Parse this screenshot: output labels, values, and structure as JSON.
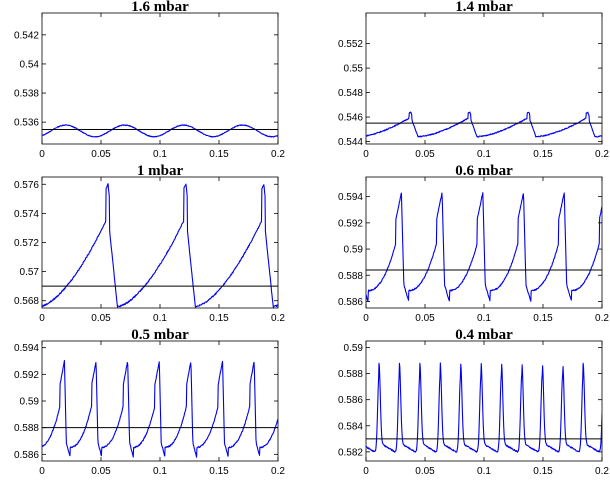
{
  "chart_data": [
    {
      "type": "line",
      "title": "1.6 mbar",
      "xlim": [
        0,
        0.2
      ],
      "ylim": [
        0.5345,
        0.5435
      ],
      "xticks": [
        0,
        0.05,
        0.1,
        0.15,
        0.2
      ],
      "xticklabels": [
        "0",
        "0.05",
        "0.1",
        "0.15",
        "0.2"
      ],
      "yticks": [
        0.536,
        0.538,
        0.54,
        0.542
      ],
      "yticklabels": [
        "0.536",
        "0.538",
        "0.54",
        "0.542"
      ],
      "reference_line_y": 0.5355,
      "color": "#0000ee",
      "waveform": {
        "kind": "smooth",
        "period": 0.05,
        "phase": 0.02,
        "baseline": 0.535,
        "amplitude": 0.0008,
        "spike": 0,
        "noise": 5e-05
      }
    },
    {
      "type": "line",
      "title": "1.4 mbar",
      "xlim": [
        0,
        0.2
      ],
      "ylim": [
        0.5438,
        0.5545
      ],
      "xticks": [
        0,
        0.05,
        0.1,
        0.15,
        0.2
      ],
      "xticklabels": [
        "0",
        "0.05",
        "0.1",
        "0.15",
        "0.2"
      ],
      "yticks": [
        0.544,
        0.546,
        0.548,
        0.55,
        0.552
      ],
      "yticklabels": [
        "0.544",
        "0.546",
        "0.548",
        "0.55",
        "0.552"
      ],
      "reference_line_y": 0.5455,
      "color": "#0000ee",
      "waveform": {
        "kind": "sawtooth",
        "period": 0.05,
        "phase": 0.038,
        "baseline": 0.5444,
        "amplitude": 0.0016,
        "spike": 0.0004,
        "noise": 8e-05
      }
    },
    {
      "type": "line",
      "title": "1 mbar",
      "xlim": [
        0,
        0.2
      ],
      "ylim": [
        0.5675,
        0.5765
      ],
      "xticks": [
        0,
        0.05,
        0.1,
        0.15,
        0.2
      ],
      "xticklabels": [
        "0",
        "0.05",
        "0.1",
        "0.15",
        "0.2"
      ],
      "yticks": [
        0.568,
        0.57,
        0.572,
        0.574,
        0.576
      ],
      "yticklabels": [
        "0.568",
        "0.57",
        "0.572",
        "0.574",
        "0.576"
      ],
      "reference_line_y": 0.569,
      "color": "#0000ee",
      "waveform": {
        "kind": "sawtooth",
        "period": 0.066,
        "phase": 0.056,
        "baseline": 0.5676,
        "amplitude": 0.0062,
        "spike": 0.0022,
        "noise": 0.0001
      }
    },
    {
      "type": "line",
      "title": "0.6 mbar",
      "xlim": [
        0,
        0.2
      ],
      "ylim": [
        0.5855,
        0.5955
      ],
      "xticks": [
        0,
        0.05,
        0.1,
        0.15,
        0.2
      ],
      "xticklabels": [
        "0",
        "0.05",
        "0.1",
        "0.15",
        "0.2"
      ],
      "yticks": [
        0.586,
        0.588,
        0.59,
        0.592,
        0.594
      ],
      "yticklabels": [
        "0.586",
        "0.588",
        "0.59",
        "0.592",
        "0.594"
      ],
      "reference_line_y": 0.5884,
      "color": "#0000ee",
      "waveform": {
        "kind": "pulse",
        "period": 0.0345,
        "phase": 0.03,
        "baseline": 0.586,
        "amplitude": 0.0083,
        "spike": 0,
        "noise": 0.0001
      }
    },
    {
      "type": "line",
      "title": "0.5 mbar",
      "xlim": [
        0,
        0.2
      ],
      "ylim": [
        0.5855,
        0.5945
      ],
      "xticks": [
        0,
        0.05,
        0.1,
        0.15,
        0.2
      ],
      "xticklabels": [
        "0",
        "0.05",
        "0.1",
        "0.15",
        "0.2"
      ],
      "yticks": [
        0.586,
        0.588,
        0.59,
        0.592,
        0.594
      ],
      "yticklabels": [
        "0.586",
        "0.588",
        "0.59",
        "0.592",
        "0.594"
      ],
      "reference_line_y": 0.588,
      "color": "#0000ee",
      "waveform": {
        "kind": "pulse",
        "period": 0.0268,
        "phase": 0.019,
        "baseline": 0.5858,
        "amplitude": 0.0072,
        "spike": 0,
        "noise": 0.0001
      }
    },
    {
      "type": "line",
      "title": "0.4 mbar",
      "xlim": [
        0,
        0.2
      ],
      "ylim": [
        0.5813,
        0.5905
      ],
      "xticks": [
        0,
        0.05,
        0.1,
        0.15,
        0.2
      ],
      "xticklabels": [
        "0",
        "0.05",
        "0.1",
        "0.15",
        "0.2"
      ],
      "yticks": [
        0.582,
        0.584,
        0.586,
        0.588,
        0.59
      ],
      "yticklabels": [
        "0.582",
        "0.584",
        "0.586",
        "0.588",
        "0.59"
      ],
      "reference_line_y": 0.583,
      "color": "#0000ee",
      "waveform": {
        "kind": "spike",
        "period": 0.0173,
        "phase": 0.011,
        "baseline": 0.5818,
        "amplitude": 0.0061,
        "spike": 0,
        "noise": 0.0001
      }
    }
  ]
}
